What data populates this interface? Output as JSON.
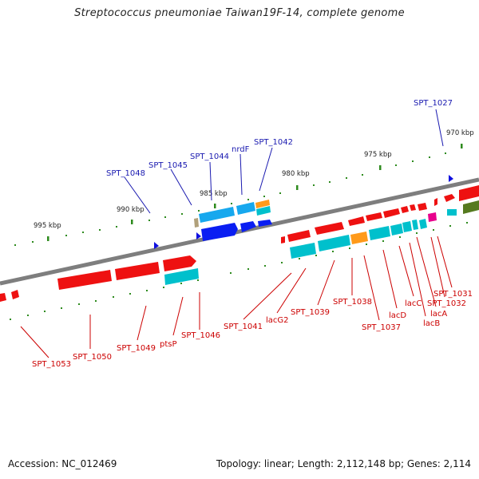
{
  "title": "Streptococcus pneumoniae Taiwan19F-14, complete genome",
  "accession": "Accession: NC_012469",
  "summary": "Topology: linear; Length: 2,112,148 bp; Genes: 2,114",
  "colors": {
    "forward_gene": "#ee1111",
    "reverse_gene": "#0000ee",
    "cds_cyan": "#00c0cc",
    "cds_sky": "#17a8ee",
    "cds_orange": "#ff9a1a",
    "cds_magenta": "#e8008c",
    "cds_olive": "#557a1f",
    "backbone": "#808080",
    "tick_green": "#2e8b1e",
    "label_red": "#cc0000",
    "label_blue": "#1a1ab0"
  },
  "scale_labels": {
    "k970": "970 kbp",
    "k975": "975 kbp",
    "k980": "980 kbp",
    "k985": "985 kbp",
    "k990": "990 kbp",
    "k995": "995 kbp"
  },
  "genes_top": {
    "spt1027": "SPT_1027",
    "spt1042": "SPT_1042",
    "nrdf": "nrdF",
    "spt1044": "SPT_1044",
    "spt1045": "SPT_1045",
    "spt1048": "SPT_1048"
  },
  "genes_bottom": {
    "spt1031": "SPT_1031",
    "spt1032": "SPT_1032",
    "lacc": "lacC",
    "laca": "lacA",
    "lacb": "lacB",
    "lacd": "lacD",
    "spt1038": "SPT_1038",
    "spt1037": "SPT_1037",
    "spt1039": "SPT_1039",
    "lacg2": "lacG2",
    "spt1041": "SPT_1041",
    "spt1046": "SPT_1046",
    "ptsp": "ptsP",
    "spt1049": "SPT_1049",
    "spt1050": "SPT_1050",
    "spt1053": "SPT_1053"
  }
}
